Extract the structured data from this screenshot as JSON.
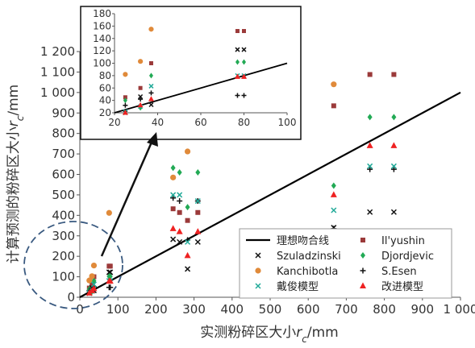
{
  "chart_data": {
    "type": "scatter",
    "xlabel_parts": [
      "实测粉碎区大小",
      "r",
      "c",
      "/mm"
    ],
    "ylabel_parts": [
      "计算预测的粉碎区大小",
      "r",
      "c",
      "/mm"
    ],
    "xlim": [
      0,
      1000
    ],
    "ylim": [
      0,
      1200
    ],
    "xticks": [
      "0",
      "100",
      "200",
      "300",
      "400",
      "500",
      "600",
      "700",
      "800",
      "900",
      "1 000"
    ],
    "yticks": [
      "0",
      "100",
      "200",
      "300",
      "400",
      "500",
      "600",
      "700",
      "800",
      "900",
      "1 000",
      "1 100",
      "1 200"
    ],
    "ideal_line": {
      "name": "理想吻合线",
      "points": [
        [
          0,
          0
        ],
        [
          1000,
          1000
        ]
      ],
      "color": "#000000"
    },
    "series": [
      {
        "name": "Il'yushin",
        "marker": "square",
        "color": "#9b3a3a",
        "points": [
          [
            25,
            45
          ],
          [
            32,
            60
          ],
          [
            37,
            100
          ],
          [
            77,
            152
          ],
          [
            80,
            152
          ],
          [
            245,
            432
          ],
          [
            262,
            414
          ],
          [
            283,
            375
          ],
          [
            310,
            414
          ],
          [
            667,
            935
          ],
          [
            762,
            1088
          ],
          [
            825,
            1088
          ]
        ]
      },
      {
        "name": "Szuladzinski",
        "marker": "x",
        "color": "#111111",
        "points": [
          [
            25,
            20
          ],
          [
            32,
            46
          ],
          [
            37,
            33
          ],
          [
            77,
            122
          ],
          [
            80,
            122
          ],
          [
            245,
            283
          ],
          [
            262,
            270
          ],
          [
            283,
            138
          ],
          [
            310,
            270
          ],
          [
            667,
            340
          ],
          [
            762,
            416
          ],
          [
            825,
            416
          ]
        ]
      },
      {
        "name": "Djordjevic",
        "marker": "diamond",
        "color": "#22aa55",
        "points": [
          [
            25,
            40
          ],
          [
            32,
            28
          ],
          [
            37,
            80
          ],
          [
            77,
            102
          ],
          [
            80,
            102
          ],
          [
            245,
            632
          ],
          [
            262,
            610
          ],
          [
            283,
            440
          ],
          [
            310,
            610
          ],
          [
            667,
            545
          ],
          [
            762,
            880
          ],
          [
            825,
            880
          ]
        ]
      },
      {
        "name": "Kanchibotla",
        "marker": "circle",
        "color": "#e08a3a",
        "points": [
          [
            25,
            82
          ],
          [
            32,
            103
          ],
          [
            37,
            155
          ],
          [
            77,
            412
          ],
          [
            245,
            585
          ],
          [
            283,
            712
          ],
          [
            667,
            1040
          ]
        ]
      },
      {
        "name": "S.Esen",
        "marker": "plus",
        "color": "#111111",
        "points": [
          [
            25,
            32
          ],
          [
            32,
            42
          ],
          [
            37,
            52
          ],
          [
            77,
            48
          ],
          [
            80,
            48
          ],
          [
            245,
            485
          ],
          [
            262,
            470
          ],
          [
            283,
            280
          ],
          [
            310,
            470
          ],
          [
            667,
            335
          ],
          [
            762,
            625
          ],
          [
            825,
            625
          ]
        ]
      },
      {
        "name": "戴俊模型",
        "marker": "x",
        "color": "#22aa99",
        "points": [
          [
            25,
            22
          ],
          [
            32,
            30
          ],
          [
            37,
            63
          ],
          [
            77,
            80
          ],
          [
            80,
            80
          ],
          [
            245,
            500
          ],
          [
            262,
            500
          ],
          [
            283,
            270
          ],
          [
            310,
            470
          ],
          [
            667,
            425
          ],
          [
            762,
            640
          ],
          [
            825,
            640
          ]
        ]
      },
      {
        "name": "改进模型",
        "marker": "triangle",
        "color": "#ee2222",
        "points": [
          [
            25,
            20
          ],
          [
            32,
            32
          ],
          [
            37,
            42
          ],
          [
            77,
            78
          ],
          [
            80,
            78
          ],
          [
            245,
            335
          ],
          [
            262,
            320
          ],
          [
            283,
            203
          ],
          [
            310,
            320
          ],
          [
            667,
            500
          ],
          [
            762,
            740
          ],
          [
            825,
            740
          ]
        ]
      }
    ],
    "legend_placement": "bottom-right",
    "inset": {
      "xlim": [
        20,
        100
      ],
      "ylim": [
        20,
        180
      ],
      "xticks": [
        "20",
        "40",
        "60",
        "80",
        "100"
      ],
      "yticks": [
        "20",
        "40",
        "60",
        "80",
        "100",
        "120",
        "140",
        "160",
        "180"
      ]
    }
  }
}
